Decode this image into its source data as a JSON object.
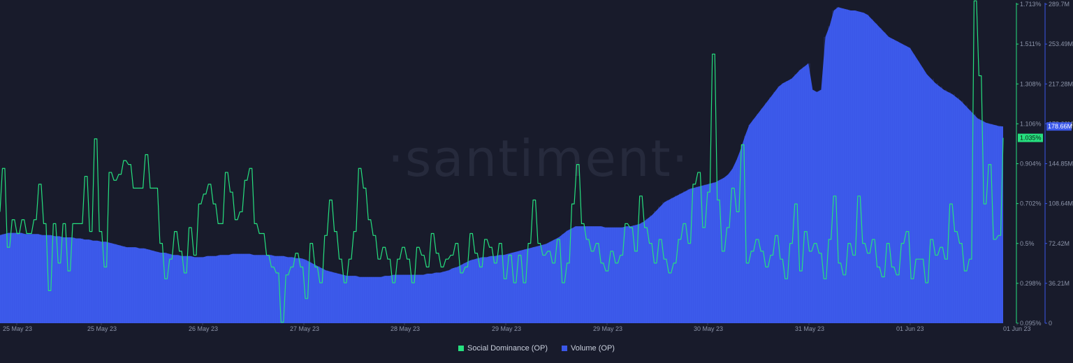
{
  "watermark": "·santiment·",
  "chart_data": {
    "type": "line",
    "x_labels": [
      "25 May 23",
      "25 May 23",
      "26 May 23",
      "27 May 23",
      "28 May 23",
      "29 May 23",
      "29 May 23",
      "30 May 23",
      "31 May 23",
      "01 Jun 23",
      "01 Jun 23"
    ],
    "y_left_ticks": [
      "1.713%",
      "1.511%",
      "1.308%",
      "1.106%",
      "0.904%",
      "0.702%",
      "0.5%",
      "0.298%",
      "0.095%"
    ],
    "y_right_ticks": [
      "289.7M",
      "253.49M",
      "217.28M",
      "178.66M",
      "144.85M",
      "108.64M",
      "72.42M",
      "36.21M",
      "0"
    ],
    "y_left_range": [
      0.095,
      1.713
    ],
    "y_right_range": [
      0,
      289.7
    ],
    "last_values": {
      "social_dominance": "1.035%",
      "volume": "178.66M"
    },
    "series": [
      {
        "name": "Social Dominance (OP)",
        "kind": "line",
        "axis": "left",
        "color": "#26e07f",
        "values": [
          0.66,
          0.88,
          0.88,
          0.48,
          0.48,
          0.62,
          0.62,
          0.55,
          0.55,
          0.62,
          0.62,
          0.55,
          0.55,
          0.55,
          0.62,
          0.62,
          0.8,
          0.8,
          0.6,
          0.6,
          0.26,
          0.26,
          0.6,
          0.6,
          0.4,
          0.4,
          0.6,
          0.6,
          0.36,
          0.36,
          0.6,
          0.6,
          0.6,
          0.6,
          0.6,
          0.84,
          0.84,
          0.56,
          0.56,
          1.03,
          1.03,
          0.56,
          0.56,
          0.38,
          0.38,
          0.86,
          0.86,
          0.82,
          0.82,
          0.85,
          0.85,
          0.92,
          0.92,
          0.9,
          0.9,
          0.78,
          0.78,
          0.78,
          0.78,
          0.78,
          0.95,
          0.95,
          0.78,
          0.78,
          0.78,
          0.78,
          0.5,
          0.5,
          0.32,
          0.32,
          0.42,
          0.42,
          0.56,
          0.56,
          0.46,
          0.46,
          0.35,
          0.35,
          0.58,
          0.58,
          0.44,
          0.44,
          0.7,
          0.7,
          0.75,
          0.75,
          0.8,
          0.8,
          0.7,
          0.7,
          0.6,
          0.6,
          0.6,
          0.86,
          0.86,
          0.76,
          0.76,
          0.62,
          0.62,
          0.66,
          0.66,
          0.82,
          0.82,
          0.88,
          0.88,
          0.6,
          0.6,
          0.55,
          0.55,
          0.55,
          0.44,
          0.44,
          0.38,
          0.38,
          0.35,
          0.35,
          0.1,
          0.1,
          0.34,
          0.34,
          0.38,
          0.38,
          0.45,
          0.45,
          0.38,
          0.38,
          0.22,
          0.22,
          0.5,
          0.5,
          0.38,
          0.38,
          0.3,
          0.3,
          0.54,
          0.54,
          0.72,
          0.72,
          0.56,
          0.56,
          0.42,
          0.42,
          0.3,
          0.3,
          0.42,
          0.42,
          0.56,
          0.56,
          0.88,
          0.88,
          0.78,
          0.78,
          0.62,
          0.62,
          0.54,
          0.54,
          0.42,
          0.42,
          0.48,
          0.48,
          0.42,
          0.42,
          0.3,
          0.3,
          0.42,
          0.42,
          0.48,
          0.48,
          0.42,
          0.42,
          0.3,
          0.3,
          0.48,
          0.48,
          0.44,
          0.44,
          0.38,
          0.38,
          0.55,
          0.55,
          0.45,
          0.45,
          0.38,
          0.38,
          0.42,
          0.42,
          0.44,
          0.44,
          0.5,
          0.5,
          0.35,
          0.35,
          0.38,
          0.38,
          0.55,
          0.55,
          0.45,
          0.45,
          0.38,
          0.38,
          0.52,
          0.52,
          0.48,
          0.48,
          0.4,
          0.4,
          0.5,
          0.5,
          0.32,
          0.32,
          0.44,
          0.44,
          0.3,
          0.3,
          0.44,
          0.44,
          0.3,
          0.3,
          0.5,
          0.5,
          0.72,
          0.72,
          0.5,
          0.5,
          0.44,
          0.44,
          0.46,
          0.46,
          0.4,
          0.4,
          0.52,
          0.52,
          0.3,
          0.3,
          0.4,
          0.4,
          0.7,
          0.7,
          0.9,
          0.9,
          0.6,
          0.6,
          0.52,
          0.52,
          0.46,
          0.46,
          0.5,
          0.5,
          0.4,
          0.4,
          0.36,
          0.36,
          0.46,
          0.46,
          0.4,
          0.4,
          0.44,
          0.44,
          0.6,
          0.6,
          0.58,
          0.58,
          0.46,
          0.46,
          0.74,
          0.74,
          0.58,
          0.58,
          0.5,
          0.5,
          0.4,
          0.4,
          0.52,
          0.52,
          0.42,
          0.42,
          0.35,
          0.35,
          0.4,
          0.4,
          0.52,
          0.52,
          0.6,
          0.6,
          0.5,
          0.5,
          0.8,
          0.8,
          0.86,
          0.86,
          0.58,
          0.58,
          0.76,
          0.76,
          1.46,
          1.46,
          0.72,
          0.72,
          0.46,
          0.46,
          0.58,
          0.58,
          0.78,
          0.78,
          0.66,
          0.66,
          1.0,
          1.0,
          0.4,
          0.4,
          0.46,
          0.46,
          0.52,
          0.52,
          0.46,
          0.46,
          0.38,
          0.38,
          0.44,
          0.44,
          0.54,
          0.54,
          0.42,
          0.42,
          0.32,
          0.32,
          0.5,
          0.5,
          0.7,
          0.7,
          0.36,
          0.36,
          0.56,
          0.56,
          0.46,
          0.46,
          0.5,
          0.5,
          0.45,
          0.45,
          0.32,
          0.32,
          0.52,
          0.52,
          0.74,
          0.74,
          0.4,
          0.4,
          0.34,
          0.34,
          0.5,
          0.5,
          0.44,
          0.44,
          0.74,
          0.74,
          0.5,
          0.5,
          0.45,
          0.45,
          0.52,
          0.52,
          0.38,
          0.38,
          0.33,
          0.33,
          0.5,
          0.5,
          0.38,
          0.38,
          0.34,
          0.34,
          0.5,
          0.5,
          0.56,
          0.56,
          0.32,
          0.32,
          0.42,
          0.42,
          0.42,
          0.42,
          0.3,
          0.3,
          0.52,
          0.52,
          0.44,
          0.44,
          0.48,
          0.48,
          0.42,
          0.42,
          0.7,
          0.7,
          0.56,
          0.56,
          0.5,
          0.5,
          0.36,
          0.36,
          0.42,
          0.42,
          1.73,
          1.73,
          1.35,
          1.35,
          0.7,
          0.7,
          0.9,
          0.9,
          0.52,
          0.52,
          0.54,
          0.54,
          1.035
        ]
      },
      {
        "name": "Volume (OP)",
        "kind": "area",
        "axis": "right",
        "color": "#3a57e8",
        "values": [
          80,
          81,
          82,
          82,
          82,
          82,
          81,
          81,
          81,
          81,
          80,
          80,
          80,
          79,
          79,
          78,
          78,
          78,
          77,
          77,
          76,
          76,
          75,
          75,
          74,
          74,
          73,
          72,
          71,
          70,
          69,
          69,
          69,
          68,
          68,
          67,
          66,
          65,
          64,
          64,
          63,
          62,
          62,
          61,
          61,
          61,
          60,
          60,
          60,
          61,
          61,
          61,
          62,
          62,
          62,
          63,
          63,
          63,
          63,
          63,
          62,
          62,
          62,
          62,
          62,
          61,
          61,
          61,
          60,
          60,
          59,
          59,
          58,
          56,
          54,
          52,
          50,
          48,
          47,
          46,
          45,
          44,
          43,
          43,
          43,
          42,
          42,
          42,
          42,
          42,
          42,
          43,
          43,
          44,
          44,
          44,
          44,
          44,
          44,
          44,
          44,
          45,
          45,
          46,
          46,
          47,
          48,
          50,
          51,
          53,
          55,
          57,
          58,
          59,
          60,
          60,
          61,
          61,
          62,
          62,
          63,
          64,
          65,
          66,
          67,
          68,
          69,
          70,
          71,
          72,
          74,
          76,
          78,
          81,
          84,
          86,
          88,
          88,
          88,
          88,
          88,
          88,
          88,
          87,
          87,
          87,
          87,
          87,
          88,
          88,
          89,
          90,
          92,
          95,
          98,
          102,
          106,
          110,
          112,
          114,
          116,
          118,
          120,
          122,
          123,
          124,
          125,
          126,
          127,
          128,
          130,
          132,
          135,
          140,
          148,
          158,
          170,
          180,
          185,
          190,
          195,
          200,
          205,
          210,
          215,
          218,
          220,
          222,
          226,
          230,
          233,
          236,
          212,
          210,
          212,
          260,
          270,
          284,
          287,
          286,
          285,
          284,
          284,
          283,
          282,
          280,
          276,
          272,
          268,
          264,
          260,
          258,
          256,
          254,
          252,
          250,
          244,
          238,
          232,
          226,
          222,
          218,
          215,
          212,
          210,
          208,
          205,
          202,
          198,
          194,
          190,
          186,
          184,
          182,
          181,
          180,
          179,
          178.66
        ]
      }
    ]
  },
  "legend": [
    {
      "label": "Social Dominance (OP)",
      "color": "#26e07f"
    },
    {
      "label": "Volume (OP)",
      "color": "#3a57e8"
    }
  ]
}
